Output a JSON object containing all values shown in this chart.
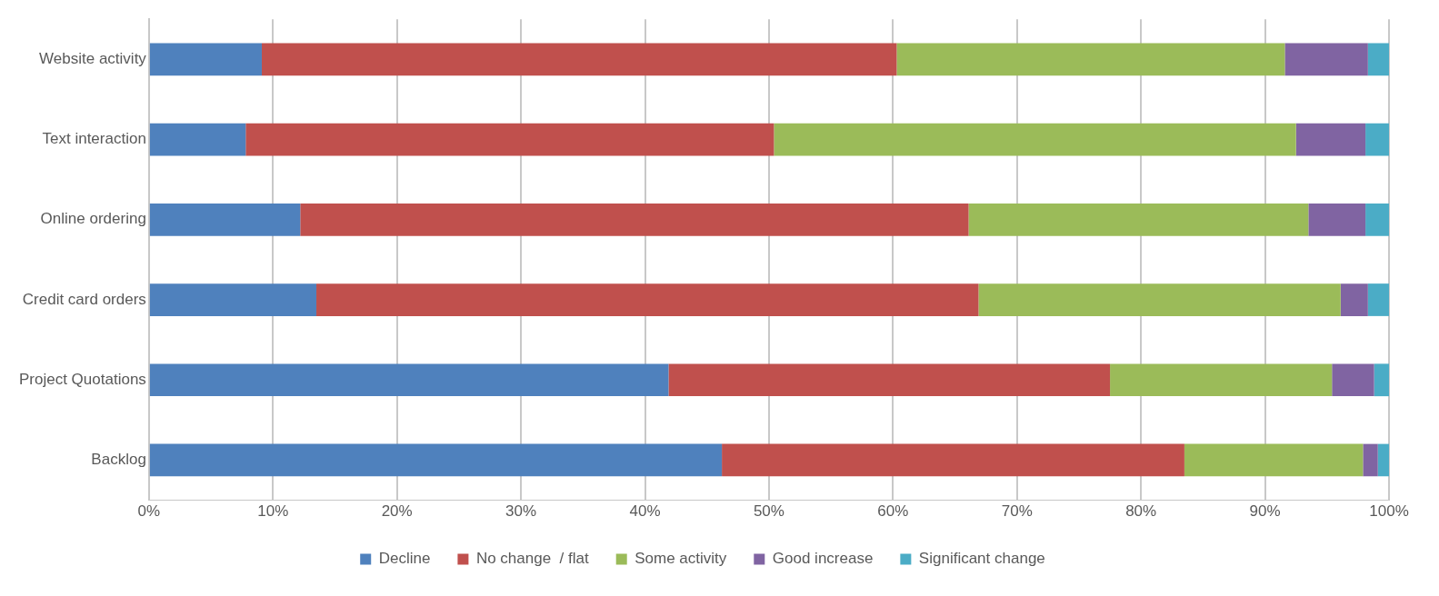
{
  "chart_data": {
    "type": "bar",
    "orientation": "horizontal",
    "stacked": true,
    "categories": [
      "Website activity",
      "Text interaction",
      "Online ordering",
      "Credit card orders",
      "Project Quotations",
      "Backlog"
    ],
    "series": [
      {
        "name": "Decline",
        "color": "#4f81bd",
        "values": [
          9.1,
          7.8,
          12.2,
          13.5,
          41.9,
          46.2
        ]
      },
      {
        "name": "No change  / flat",
        "color": "#c0504d",
        "values": [
          51.2,
          42.6,
          53.9,
          53.4,
          35.6,
          37.3
        ]
      },
      {
        "name": "Some activity",
        "color": "#9bbb59",
        "values": [
          31.3,
          42.1,
          27.4,
          29.2,
          17.9,
          14.4
        ]
      },
      {
        "name": "Good increase",
        "color": "#8064a2",
        "values": [
          6.7,
          5.6,
          4.6,
          2.2,
          3.4,
          1.2
        ]
      },
      {
        "name": "Significant change",
        "color": "#4bacc6",
        "values": [
          1.7,
          1.9,
          1.9,
          1.7,
          1.2,
          0.9
        ]
      }
    ],
    "xlim": [
      0,
      100
    ],
    "xticks": [
      {
        "value": 0,
        "label": "0%"
      },
      {
        "value": 10,
        "label": "10%"
      },
      {
        "value": 20,
        "label": "20%"
      },
      {
        "value": 30,
        "label": "30%"
      },
      {
        "value": 40,
        "label": "40%"
      },
      {
        "value": 50,
        "label": "50%"
      },
      {
        "value": 60,
        "label": "60%"
      },
      {
        "value": 70,
        "label": "70%"
      },
      {
        "value": 80,
        "label": "80%"
      },
      {
        "value": 90,
        "label": "90%"
      },
      {
        "value": 100,
        "label": "100%"
      }
    ],
    "grid": "x",
    "legend": "bottom"
  }
}
